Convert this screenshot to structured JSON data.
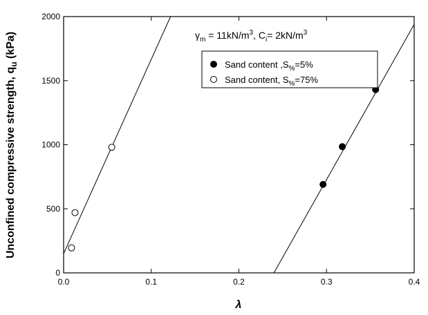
{
  "chart_data": {
    "type": "scatter",
    "xlabel": "λ",
    "ylabel_main": "Unconfined compressive strength, q",
    "ylabel_sub": "u",
    "ylabel_unit": " (kPa)",
    "xlim": [
      0.0,
      0.4
    ],
    "ylim": [
      0,
      2000
    ],
    "x_ticks": [
      0.0,
      0.1,
      0.2,
      0.3,
      0.4
    ],
    "x_tick_labels": [
      "0.0",
      "0.1",
      "0.2",
      "0.3",
      "0.4"
    ],
    "y_ticks": [
      0,
      500,
      1000,
      1500,
      2000
    ],
    "y_tick_labels": [
      "0",
      "500",
      "1000",
      "1500",
      "2000"
    ],
    "grid": false,
    "legend_position": "top-right",
    "annotation": {
      "gamma_symbol": "γ",
      "gamma_sub": "m",
      "gamma_value": " = 11kN/m",
      "gamma_sup": "3",
      "sep": ", C",
      "c_sub": "i",
      "c_value": "= 2kN/m",
      "c_sup": "3"
    },
    "series": [
      {
        "name": "Sand content ,S%=5%",
        "legend_pre": "Sand content ,S",
        "legend_sub": "%",
        "legend_post": "=5%",
        "marker": "filled-circle",
        "color": "#000000",
        "x": [
          0.296,
          0.318,
          0.356
        ],
        "y": [
          690,
          985,
          1430
        ],
        "fit_line": {
          "x": [
            0.24,
            0.405
          ],
          "y": [
            0,
            2000
          ]
        }
      },
      {
        "name": "Sand content, S%=75%",
        "legend_pre": "Sand content, S",
        "legend_sub": "%",
        "legend_post": "=75%",
        "marker": "open-circle",
        "color": "#000000",
        "x": [
          0.009,
          0.013,
          0.055
        ],
        "y": [
          195,
          470,
          980
        ],
        "fit_line": {
          "x": [
            0.0,
            0.122
          ],
          "y": [
            150,
            2000
          ]
        }
      }
    ]
  }
}
